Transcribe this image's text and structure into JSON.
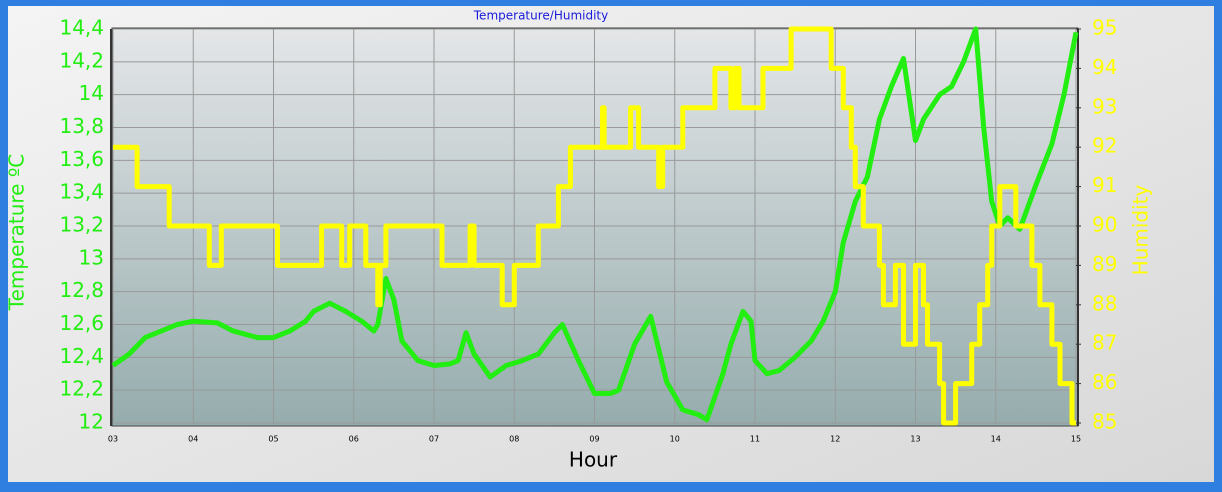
{
  "chart_data": {
    "type": "line",
    "title": "Temperature/Humidity",
    "xlabel": "Hour",
    "ylabel": "Temperature ºC",
    "y2label": "Humidity",
    "xlim": [
      3,
      15
    ],
    "xticks": [
      {
        "value": 3,
        "label": "03"
      },
      {
        "value": 4,
        "label": "04"
      },
      {
        "value": 5,
        "label": "05"
      },
      {
        "value": 6,
        "label": "06"
      },
      {
        "value": 7,
        "label": "07"
      },
      {
        "value": 8,
        "label": "08"
      },
      {
        "value": 9,
        "label": "09"
      },
      10,
      11,
      12,
      13,
      14,
      15
    ],
    "ylim": [
      12,
      14.4
    ],
    "yticks": [
      12,
      {
        "value": 12.2,
        "label": "12,2"
      },
      {
        "value": 12.4,
        "label": "12,4"
      },
      {
        "value": 12.6,
        "label": "12,6"
      },
      {
        "value": 12.8,
        "label": "12,8"
      },
      13,
      {
        "value": 13.2,
        "label": "13,2"
      },
      {
        "value": 13.4,
        "label": "13,4"
      },
      {
        "value": 13.6,
        "label": "13,6"
      },
      {
        "value": 13.8,
        "label": "13,8"
      },
      14,
      {
        "value": 14.2,
        "label": "14,2"
      },
      {
        "value": 14.4,
        "label": "14,4"
      }
    ],
    "y2lim": [
      85,
      95
    ],
    "y2ticks": [
      85,
      86,
      87,
      88,
      89,
      90,
      91,
      92,
      93,
      94,
      95
    ],
    "grid": true,
    "series": [
      {
        "color": "#22ee11",
        "x": [
          3.0,
          3.2,
          3.4,
          3.6,
          3.8,
          4.0,
          4.3,
          4.5,
          4.8,
          5.0,
          5.2,
          5.4,
          5.5,
          5.7,
          5.9,
          6.1,
          6.25,
          6.3,
          6.4,
          6.5,
          6.6,
          6.8,
          7.0,
          7.2,
          7.3,
          7.4,
          7.5,
          7.7,
          7.9,
          8.1,
          8.3,
          8.5,
          8.6,
          8.8,
          9.0,
          9.2,
          9.3,
          9.5,
          9.7,
          9.9,
          10.1,
          10.3,
          10.4,
          10.6,
          10.7,
          10.85,
          10.95,
          11.0,
          11.15,
          11.3,
          11.5,
          11.7,
          11.85,
          12.0,
          12.1,
          12.25,
          12.4,
          12.55,
          12.7,
          12.85,
          13.0,
          13.1,
          13.3,
          13.45,
          13.6,
          13.75,
          13.85,
          13.95,
          14.05,
          14.15,
          14.3,
          14.5,
          14.7,
          14.85,
          15.0
        ],
        "values": [
          12.35,
          12.42,
          12.52,
          12.56,
          12.6,
          12.62,
          12.61,
          12.56,
          12.52,
          12.52,
          12.56,
          12.62,
          12.68,
          12.73,
          12.68,
          12.62,
          12.56,
          12.6,
          12.88,
          12.75,
          12.5,
          12.38,
          12.35,
          12.36,
          12.38,
          12.55,
          12.42,
          12.28,
          12.35,
          12.38,
          12.42,
          12.55,
          12.6,
          12.38,
          12.18,
          12.18,
          12.2,
          12.48,
          12.65,
          12.25,
          12.08,
          12.05,
          12.02,
          12.3,
          12.48,
          12.68,
          12.62,
          12.38,
          12.3,
          12.32,
          12.4,
          12.5,
          12.62,
          12.8,
          13.1,
          13.35,
          13.5,
          13.85,
          14.05,
          14.22,
          13.72,
          13.85,
          14.0,
          14.05,
          14.2,
          14.4,
          13.8,
          13.35,
          13.2,
          13.25,
          13.18,
          13.45,
          13.7,
          14.0,
          14.38
        ]
      },
      {
        "color": "#ffff00",
        "axis": "y2",
        "x": [
          3.0,
          3.3,
          3.3,
          3.7,
          3.7,
          4.2,
          4.2,
          4.35,
          4.35,
          5.05,
          5.05,
          5.6,
          5.6,
          5.85,
          5.85,
          5.95,
          5.95,
          6.15,
          6.15,
          6.3,
          6.3,
          6.33,
          6.33,
          6.4,
          6.4,
          7.1,
          7.1,
          7.45,
          7.45,
          7.5,
          7.5,
          7.85,
          7.85,
          8.0,
          8.0,
          8.3,
          8.3,
          8.55,
          8.55,
          8.7,
          8.7,
          9.1,
          9.1,
          9.12,
          9.12,
          9.45,
          9.45,
          9.55,
          9.55,
          9.8,
          9.8,
          9.85,
          9.85,
          10.1,
          10.1,
          10.5,
          10.5,
          10.7,
          10.7,
          10.75,
          10.75,
          10.8,
          10.8,
          11.1,
          11.1,
          11.45,
          11.45,
          11.95,
          11.95,
          12.1,
          12.1,
          12.2,
          12.2,
          12.25,
          12.25,
          12.35,
          12.35,
          12.55,
          12.55,
          12.6,
          12.6,
          12.75,
          12.75,
          12.85,
          12.85,
          13.0,
          13.0,
          13.1,
          13.1,
          13.15,
          13.15,
          13.3,
          13.3,
          13.35,
          13.35,
          13.5,
          13.5,
          13.7,
          13.7,
          13.8,
          13.8,
          13.9,
          13.9,
          13.95,
          13.95,
          14.05,
          14.05,
          14.25,
          14.25,
          14.45,
          14.45,
          14.55,
          14.55,
          14.7,
          14.7,
          14.8,
          14.8,
          14.95,
          14.95,
          15.0
        ],
        "values": [
          92,
          92,
          91,
          91,
          90,
          90,
          89,
          89,
          90,
          90,
          89,
          89,
          90,
          90,
          89,
          89,
          90,
          90,
          89,
          89,
          88,
          88,
          89,
          89,
          90,
          90,
          89,
          89,
          90,
          90,
          89,
          89,
          88,
          88,
          89,
          89,
          90,
          90,
          91,
          91,
          92,
          92,
          93,
          93,
          92,
          92,
          93,
          93,
          92,
          92,
          91,
          91,
          92,
          92,
          93,
          93,
          94,
          94,
          93,
          93,
          94,
          94,
          93,
          93,
          94,
          94,
          95,
          95,
          94,
          94,
          93,
          93,
          92,
          92,
          91,
          91,
          90,
          90,
          89,
          89,
          88,
          88,
          89,
          89,
          87,
          87,
          89,
          89,
          88,
          88,
          87,
          87,
          86,
          86,
          85,
          85,
          86,
          86,
          87,
          87,
          88,
          88,
          89,
          89,
          90,
          90,
          91,
          91,
          90,
          90,
          89,
          89,
          88,
          88,
          87,
          87,
          86,
          86,
          85,
          85
        ]
      }
    ]
  }
}
